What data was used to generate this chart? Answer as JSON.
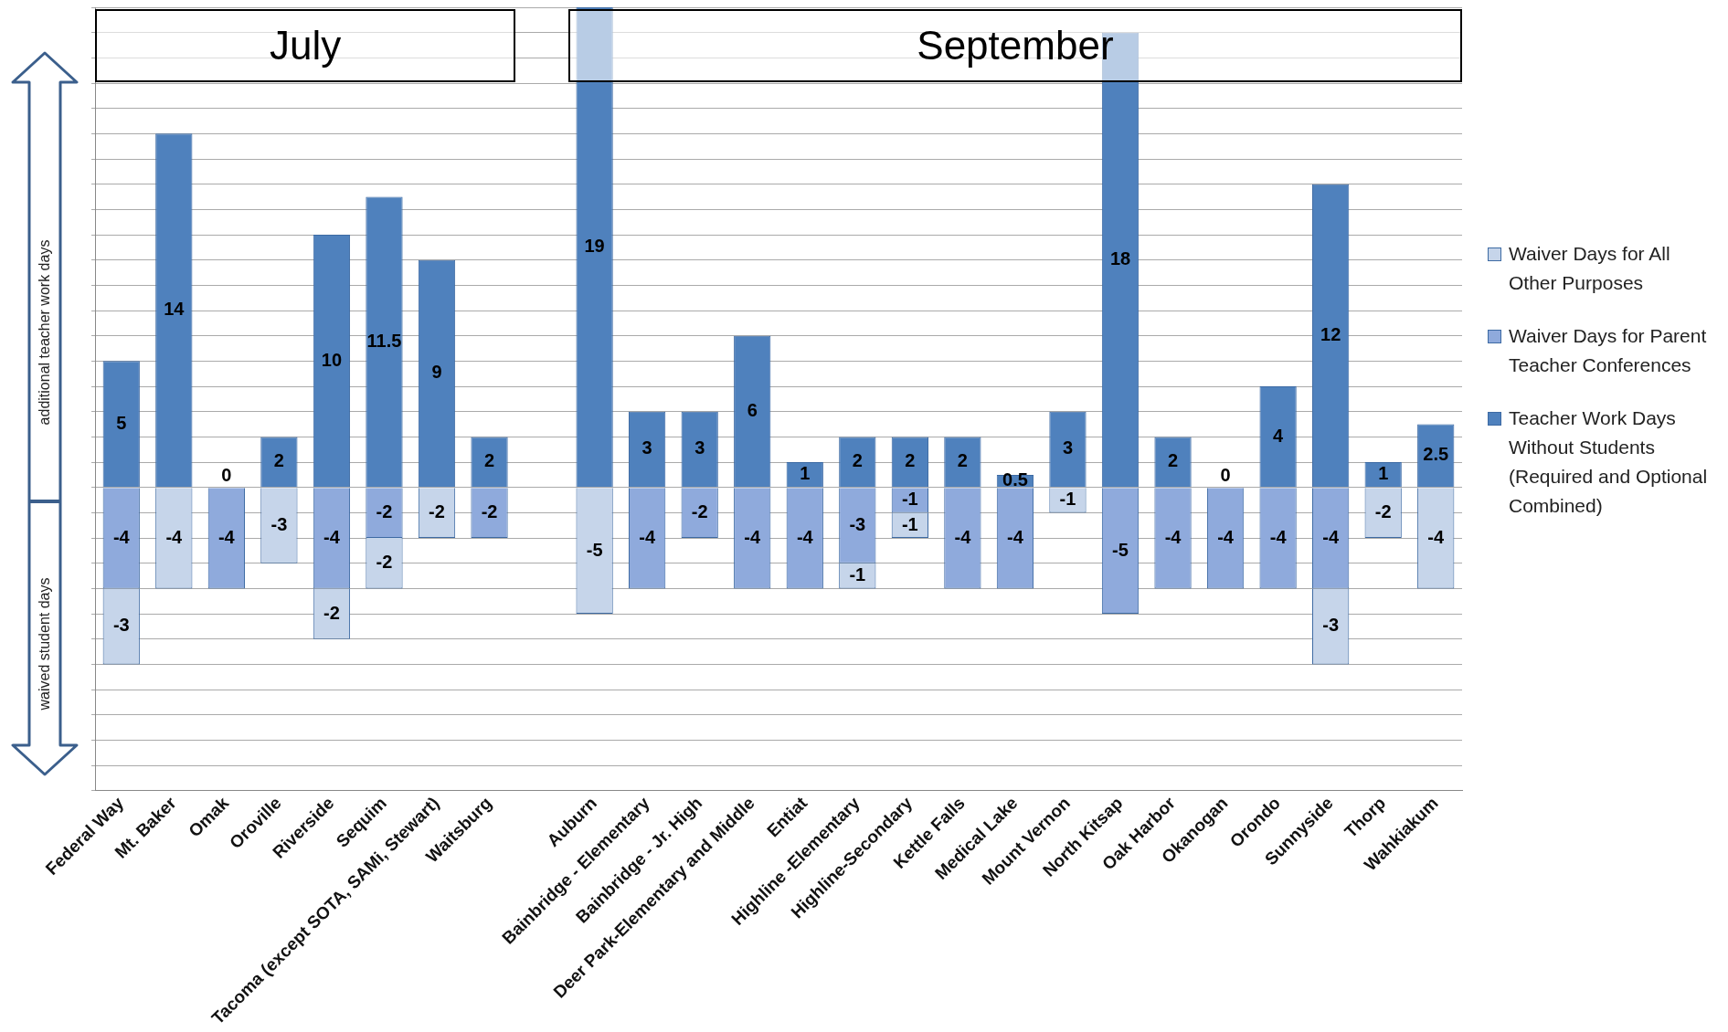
{
  "chart_data": {
    "type": "bar",
    "stacked": true,
    "categories": [
      "Federal Way",
      "Mt. Baker",
      "Omak",
      "Oroville",
      "Riverside",
      "Sequim",
      "Tacoma (except SOTA, SAMi, Stewart)",
      "Waitsburg",
      null,
      "Auburn",
      "Bainbridge - Elementary",
      "Bainbridge - Jr. High",
      "Deer Park-Elementary and Middle",
      "Entiat",
      "Highline -Elementary",
      "Highline-Secondary",
      "Kettle Falls",
      "Medical Lake",
      "Mount Vernon",
      "North Kitsap",
      "Oak Harbor",
      "Okanogan",
      "Orondo",
      "Sunnyside",
      "Thorp",
      "Wahkiakum"
    ],
    "series": [
      {
        "name": "Teacher Work Days Without Students (Required and Optional Combined)",
        "color": "#4f81bd",
        "values": [
          5,
          14,
          0,
          2,
          10,
          11.5,
          9,
          2,
          null,
          19,
          3,
          3,
          6,
          1,
          2,
          2,
          2,
          0.5,
          3,
          18,
          2,
          0,
          4,
          12,
          1,
          2.5
        ]
      },
      {
        "name": "Waiver Days for Parent Teacher Conferences",
        "color": "#8faadc",
        "values": [
          -4,
          null,
          -4,
          null,
          -4,
          -2,
          null,
          -2,
          null,
          null,
          -4,
          -2,
          -4,
          -4,
          -3,
          -1,
          -4,
          -4,
          null,
          -5,
          -4,
          -4,
          -4,
          -4,
          null,
          null
        ]
      },
      {
        "name": "Waiver Days for All Other Purposes",
        "color": "#c6d5ea",
        "values": [
          -3,
          -4,
          null,
          -3,
          -2,
          -2,
          -2,
          null,
          null,
          -5,
          null,
          null,
          null,
          null,
          -1,
          -1,
          null,
          null,
          -1,
          null,
          null,
          null,
          null,
          -3,
          -2,
          -4
        ]
      }
    ],
    "ylim": [
      -12,
      19
    ],
    "yticks": [
      {
        "value": -12,
        "label": null
      },
      {
        "value": -11,
        "label": null
      },
      {
        "value": -10,
        "label": null
      },
      {
        "value": -9,
        "label": null
      },
      {
        "value": -8,
        "label": null
      },
      {
        "value": -7,
        "label": null
      },
      {
        "value": -6,
        "label": null
      },
      {
        "value": -5,
        "label": null
      },
      {
        "value": -4,
        "label": null
      },
      {
        "value": -3,
        "label": null
      },
      {
        "value": -2,
        "label": null
      },
      {
        "value": -1,
        "label": null
      },
      {
        "value": 0,
        "label": null
      },
      {
        "value": 1,
        "label": null
      },
      {
        "value": 2,
        "label": null
      },
      {
        "value": 3,
        "label": null
      },
      {
        "value": 4,
        "label": null
      },
      {
        "value": 5,
        "label": null
      },
      {
        "value": 6,
        "label": null
      },
      {
        "value": 7,
        "label": null
      },
      {
        "value": 8,
        "label": null
      },
      {
        "value": 9,
        "label": null
      },
      {
        "value": 10,
        "label": null
      },
      {
        "value": 11,
        "label": null
      },
      {
        "value": 12,
        "label": null
      },
      {
        "value": 13,
        "label": null
      },
      {
        "value": 14,
        "label": null
      },
      {
        "value": 15,
        "label": null
      },
      {
        "value": 16,
        "label": null
      },
      {
        "value": 17,
        "label": null
      },
      {
        "value": 18,
        "label": null
      },
      {
        "value": 19,
        "label": null
      }
    ],
    "tick_labels": "x",
    "grid": "y",
    "legend": "right",
    "data_labels": true,
    "annotations": [
      "July",
      "September",
      "additional  teacher work days",
      "waived student  days"
    ]
  }
}
